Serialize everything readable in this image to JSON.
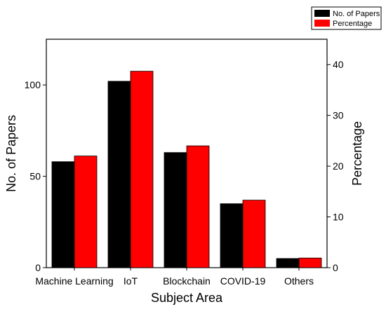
{
  "chart_data": {
    "type": "bar",
    "categories": [
      "Machine Learning",
      "IoT",
      "Blockchain",
      "COVID-19",
      "Others"
    ],
    "series": [
      {
        "name": "No. of Papers",
        "axis": "left",
        "color": "#000000",
        "values": [
          58,
          102,
          63,
          35,
          5
        ]
      },
      {
        "name": "Percentage",
        "axis": "right",
        "color": "#ff0000",
        "values": [
          22,
          38.7,
          24,
          13.3,
          1.9
        ]
      }
    ],
    "xlabel": "Subject Area",
    "ylabel": "No. of Papers",
    "y2label": "Percentage",
    "ylim": [
      0,
      125
    ],
    "y2lim": [
      0,
      45
    ],
    "yticks": [
      0,
      50,
      100
    ],
    "y2ticks": [
      0,
      10,
      20,
      30,
      40
    ],
    "legend_position": "top-right"
  }
}
